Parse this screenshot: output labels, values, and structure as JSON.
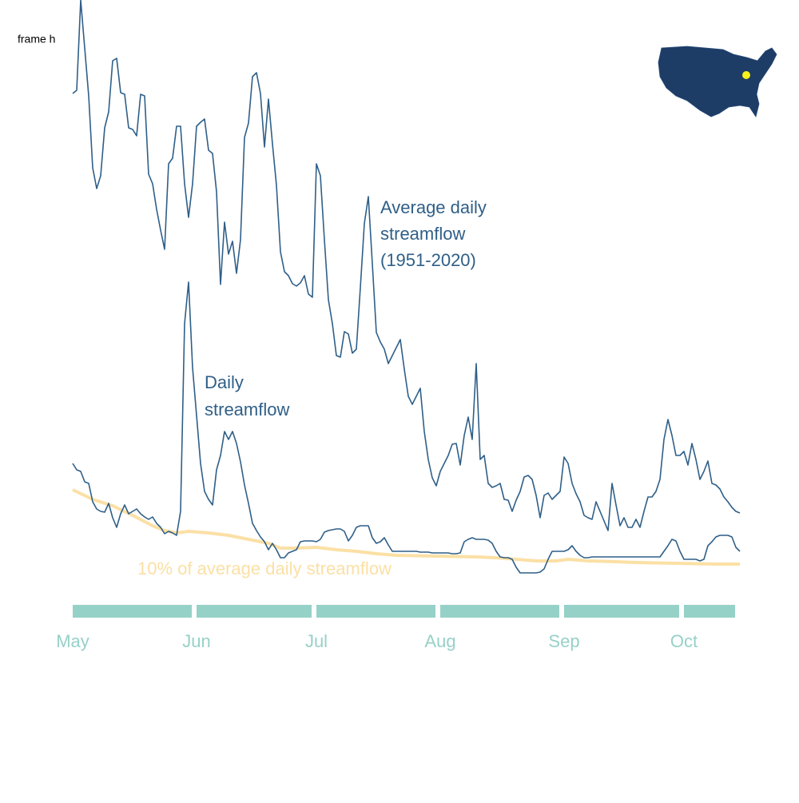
{
  "frame_label": "frame h",
  "chart_data": {
    "type": "line",
    "xlim": [
      0,
      167
    ],
    "ylim": [
      0,
      730
    ],
    "xticks": [
      {
        "value": 0,
        "label": "May"
      },
      {
        "value": 31,
        "label": "Jun"
      },
      {
        "value": 61,
        "label": "Jul"
      },
      {
        "value": 92,
        "label": "Aug"
      },
      {
        "value": 123,
        "label": "Sep"
      },
      {
        "value": 153,
        "label": "Oct"
      }
    ],
    "tick_color": "#96d1c8",
    "series": [
      {
        "name": [
          "Average daily",
          "streamflow",
          "(1951-2020)"
        ],
        "color": "#2f5f88",
        "width": 1.6,
        "x": [
          0,
          1,
          2,
          3,
          4,
          5,
          6,
          7,
          8,
          9,
          10,
          11,
          12,
          13,
          14,
          15,
          16,
          17,
          18,
          19,
          20,
          21,
          22,
          23,
          24,
          25,
          26,
          27,
          28,
          29,
          30,
          31,
          32,
          33,
          34,
          35,
          36,
          37,
          38,
          39,
          40,
          41,
          42,
          43,
          44,
          45,
          46,
          47,
          48,
          49,
          50,
          51,
          52,
          53,
          54,
          55,
          56,
          57,
          58,
          59,
          60,
          61,
          62,
          63,
          64,
          65,
          66,
          67,
          68,
          69,
          70,
          71,
          72,
          73,
          74,
          75,
          76,
          77,
          78,
          79,
          80,
          81,
          82,
          83,
          84,
          85,
          86,
          87,
          88,
          89,
          90,
          91,
          92,
          93,
          94,
          95,
          96,
          97,
          98,
          99,
          100,
          101,
          102,
          103,
          104,
          105,
          106,
          107,
          108,
          109,
          110,
          111,
          112,
          113,
          114,
          115,
          116,
          117,
          118,
          119,
          120,
          121,
          122,
          123,
          124,
          125,
          126,
          127,
          128,
          129,
          130,
          131,
          132,
          133,
          134,
          135,
          136,
          137,
          138,
          139,
          140,
          141,
          142,
          143,
          144,
          145,
          146,
          147,
          148,
          149,
          150,
          151,
          152,
          153,
          154,
          155,
          156,
          157,
          158,
          159,
          160,
          161,
          162,
          163,
          164,
          165,
          166,
          167
        ],
        "values": [
          613,
          617,
          730,
          670,
          610,
          520,
          494,
          510,
          570,
          590,
          654,
          657,
          614,
          612,
          570,
          568,
          560,
          612,
          610,
          512,
          500,
          468,
          442,
          418,
          525,
          532,
          572,
          572,
          500,
          458,
          500,
          572,
          577,
          581,
          542,
          538,
          490,
          374,
          452,
          412,
          428,
          388,
          430,
          558,
          576,
          634,
          639,
          613,
          546,
          606,
          550,
          498,
          415,
          390,
          385,
          375,
          372,
          376,
          385,
          362,
          358,
          525,
          510,
          430,
          355,
          325,
          285,
          283,
          315,
          312,
          288,
          293,
          370,
          450,
          484,
          400,
          314,
          302,
          293,
          275,
          285,
          295,
          305,
          268,
          234,
          224,
          234,
          244,
          190,
          155,
          132,
          122,
          140,
          150,
          160,
          174,
          175,
          148,
          185,
          208,
          180,
          275,
          155,
          160,
          125,
          120,
          122,
          125,
          105,
          104,
          90,
          104,
          115,
          133,
          135,
          130,
          110,
          82,
          110,
          113,
          105,
          110,
          115,
          158,
          150,
          125,
          112,
          102,
          85,
          82,
          80,
          102,
          90,
          78,
          66,
          125,
          98,
          72,
          82,
          70,
          70,
          80,
          70,
          90,
          108,
          108,
          115,
          130,
          180,
          205,
          185,
          160,
          160,
          165,
          148,
          175,
          155,
          130,
          140,
          153,
          125,
          123,
          118,
          108,
          102,
          95,
          90,
          88
        ]
      },
      {
        "name": [
          "Daily",
          "streamflow"
        ],
        "color": "#2f5f88",
        "width": 1.6,
        "x": [
          0,
          1,
          2,
          3,
          4,
          5,
          6,
          7,
          8,
          9,
          10,
          11,
          12,
          13,
          14,
          15,
          16,
          17,
          18,
          19,
          20,
          21,
          22,
          23,
          24,
          25,
          26,
          27,
          28,
          29,
          30,
          31,
          32,
          33,
          34,
          35,
          36,
          37,
          38,
          39,
          40,
          41,
          42,
          43,
          44,
          45,
          46,
          47,
          48,
          49,
          50,
          51,
          52,
          53,
          54,
          55,
          56,
          57,
          58,
          59,
          60,
          61,
          62,
          63,
          64,
          65,
          66,
          67,
          68,
          69,
          70,
          71,
          72,
          73,
          74,
          75,
          76,
          77,
          78,
          79,
          80,
          81,
          82,
          83,
          84,
          85,
          86,
          87,
          88,
          89,
          90,
          91,
          92,
          93,
          94,
          95,
          96,
          97,
          98,
          99,
          100,
          101,
          102,
          103,
          104,
          105,
          106,
          107,
          108,
          109,
          110,
          111,
          112,
          113,
          114,
          115,
          116,
          117,
          118,
          119,
          120,
          121,
          122,
          123,
          124,
          125,
          126,
          127,
          128,
          129,
          130,
          131,
          132,
          133,
          134,
          135,
          136,
          137,
          138,
          139,
          140,
          141,
          142,
          143,
          144,
          145,
          146,
          147,
          148,
          149,
          150,
          151,
          152,
          153,
          154,
          155,
          156,
          157,
          158,
          159,
          160,
          161,
          162,
          163,
          164,
          165,
          166,
          167
        ],
        "values": [
          150,
          142,
          140,
          127,
          125,
          102,
          93,
          90,
          89,
          100,
          82,
          70,
          87,
          98,
          87,
          90,
          93,
          87,
          83,
          80,
          83,
          75,
          70,
          62,
          65,
          63,
          60,
          90,
          325,
          377,
          270,
          210,
          150,
          115,
          105,
          98,
          142,
          160,
          190,
          180,
          190,
          175,
          152,
          123,
          100,
          75,
          66,
          58,
          52,
          42,
          50,
          42,
          32,
          32,
          38,
          40,
          42,
          52,
          53,
          53,
          53,
          52,
          55,
          64,
          66,
          67,
          68,
          68,
          65,
          53,
          60,
          70,
          72,
          72,
          72,
          57,
          50,
          52,
          57,
          48,
          40,
          40,
          40,
          40,
          40,
          40,
          40,
          39,
          39,
          39,
          38,
          38,
          38,
          38,
          38,
          37,
          37,
          38,
          52,
          55,
          57,
          55,
          55,
          55,
          54,
          50,
          40,
          33,
          32,
          32,
          30,
          20,
          13,
          13,
          13,
          13,
          13,
          14,
          18,
          30,
          40,
          40,
          40,
          40,
          42,
          47,
          40,
          35,
          32,
          32,
          33,
          33,
          33,
          33,
          33,
          33,
          33,
          33,
          33,
          33,
          33,
          33,
          33,
          33,
          33,
          33,
          33,
          33,
          40,
          47,
          55,
          53,
          40,
          30,
          30,
          30,
          30,
          28,
          30,
          47,
          52,
          58,
          60,
          60,
          60,
          58,
          45,
          40
        ]
      },
      {
        "name": [
          "10% of average daily streamflow"
        ],
        "color": "#fbe0a5",
        "width": 4,
        "x": [
          0,
          5,
          10,
          15,
          20,
          23,
          26,
          29,
          34,
          39,
          44,
          49,
          52,
          56,
          61,
          66,
          71,
          76,
          81,
          91,
          101,
          106,
          111,
          116,
          121,
          124,
          129,
          136,
          141,
          151,
          161,
          167
        ],
        "values": [
          117,
          105,
          97,
          85,
          72,
          66,
          63,
          65,
          63,
          60,
          55,
          50,
          44,
          44,
          45,
          42,
          40,
          37,
          35,
          34,
          33,
          32,
          30,
          28,
          28,
          30,
          28,
          27,
          26,
          25,
          24,
          24
        ]
      }
    ]
  }
}
